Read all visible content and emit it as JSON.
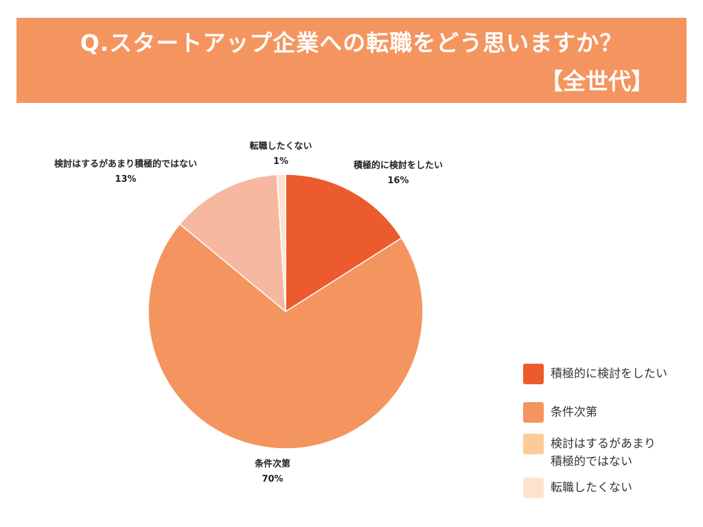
{
  "title": {
    "line1": "Q.スタートアップ企業への転職をどう思いますか？",
    "line2": "【全世代】",
    "banner_color": "#f4955f"
  },
  "chart_data": {
    "type": "pie",
    "slices": [
      {
        "label": "積極的に検討をしたい",
        "value": 16,
        "value_label": "16%",
        "color": "#ec5b2d"
      },
      {
        "label": "条件次第",
        "value": 70,
        "value_label": "70%",
        "color": "#f4955f"
      },
      {
        "label": "検討はするがあまり積極的ではない",
        "value": 13,
        "value_label": "13%",
        "color": "#f6b8a1"
      },
      {
        "label": "転職したくない",
        "value": 1,
        "value_label": "1%",
        "color": "#fde3cf"
      }
    ],
    "legend": {
      "position": "bottom-right",
      "items": [
        {
          "lines": [
            "積極的に検討をしたい"
          ],
          "color": "#ec5b2d"
        },
        {
          "lines": [
            "条件次第"
          ],
          "color": "#f4955f"
        },
        {
          "lines": [
            "検討はするがあまり",
            "積極的ではない"
          ],
          "color": "#fccb99"
        },
        {
          "lines": [
            "転職したくない"
          ],
          "color": "#fde3cf"
        }
      ]
    }
  }
}
